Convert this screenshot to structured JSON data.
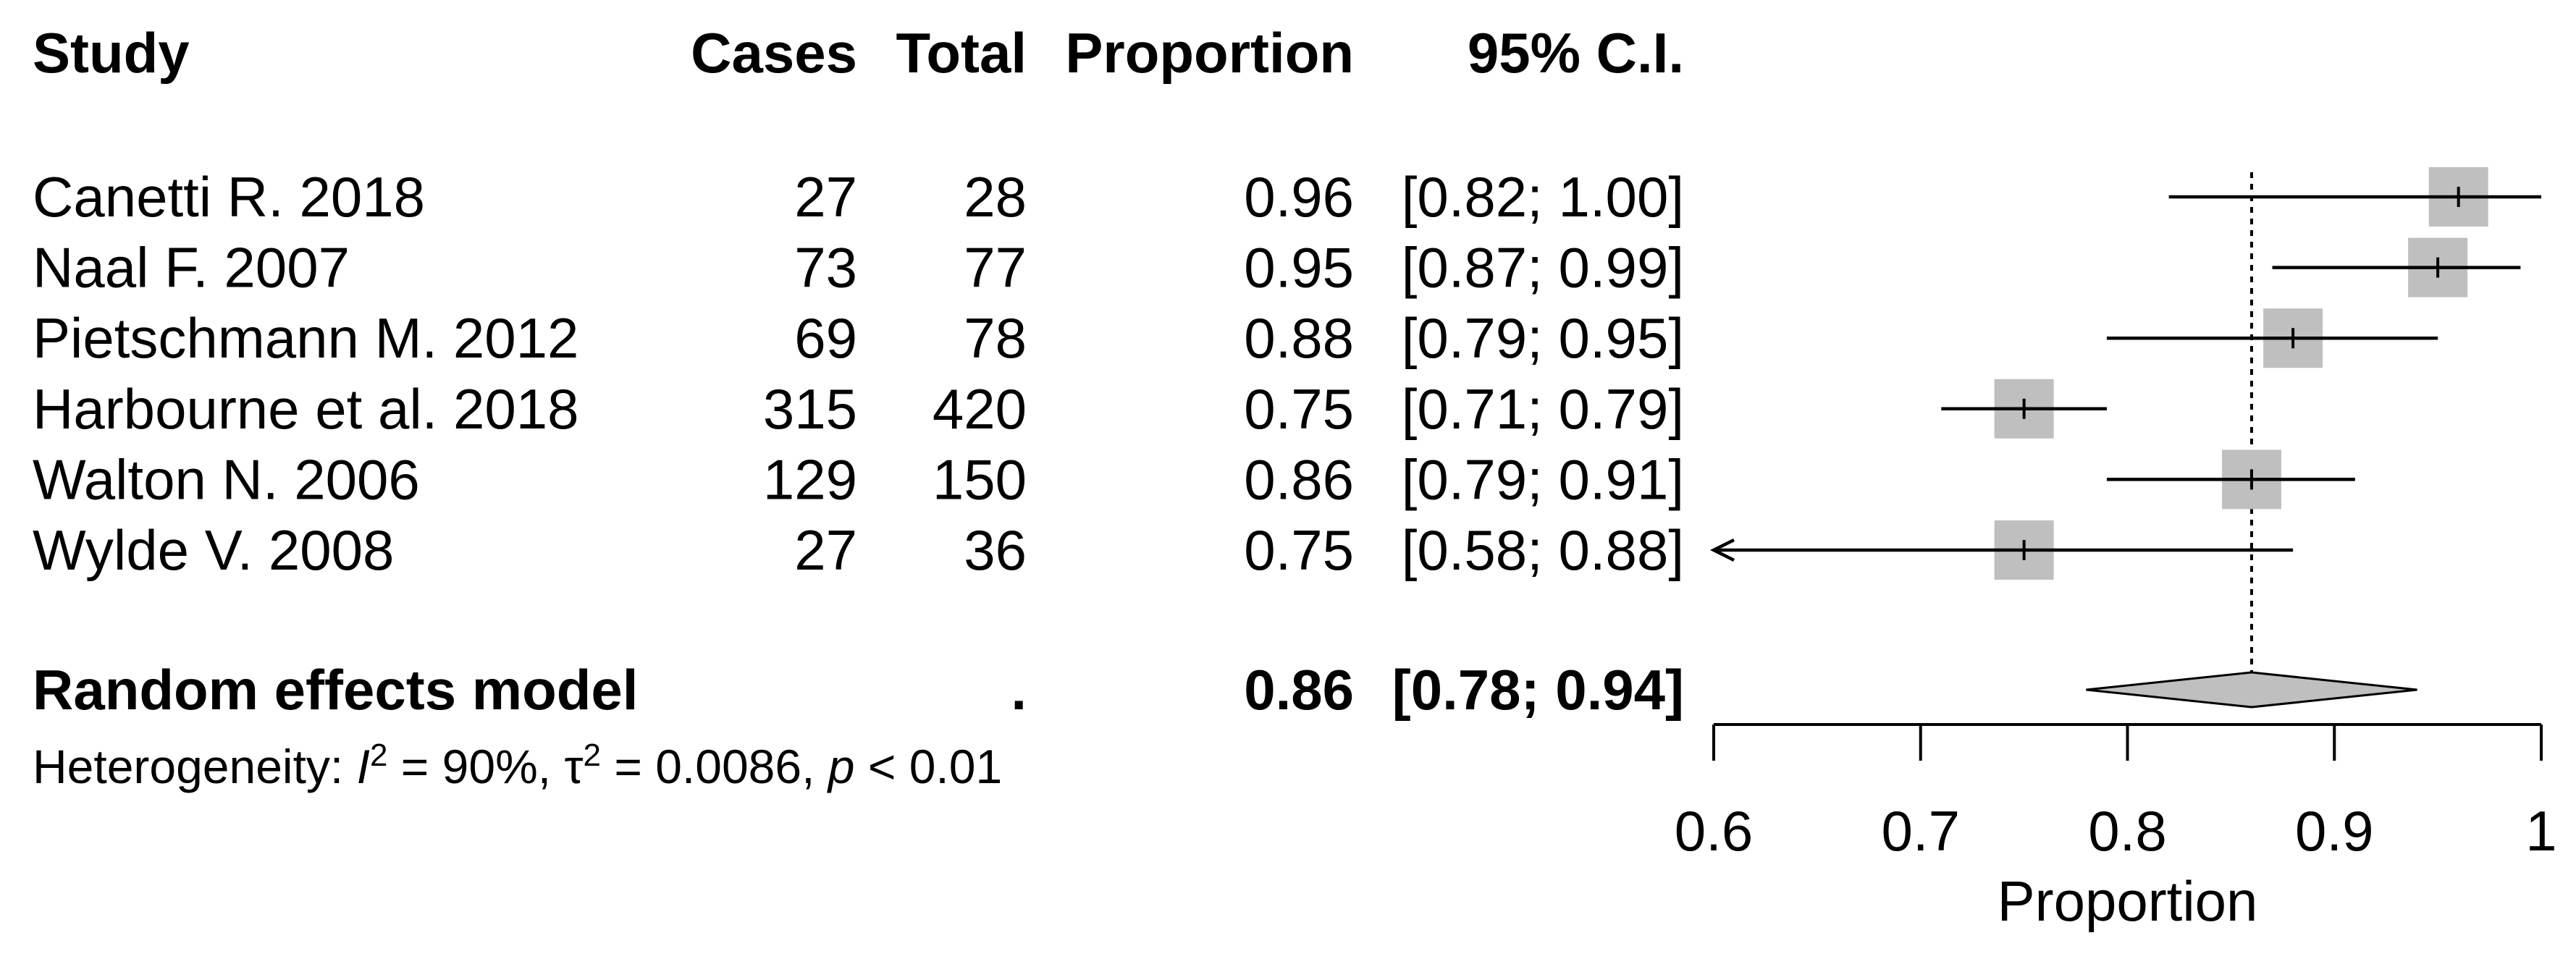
{
  "chart_data": {
    "type": "forest",
    "columns": [
      "Study",
      "Cases",
      "Total",
      "Proportion",
      "95% C.I."
    ],
    "studies": [
      {
        "name": "Canetti R. 2018",
        "cases": 27,
        "total": 28,
        "proportion": 0.96,
        "ci_lower": 0.82,
        "ci_upper": 1,
        "ci_label": "[0.82; 1.00]"
      },
      {
        "name": "Naal F. 2007",
        "cases": 73,
        "total": 77,
        "proportion": 0.95,
        "ci_lower": 0.87,
        "ci_upper": 0.99,
        "ci_label": "[0.87; 0.99]"
      },
      {
        "name": "Pietschmann M. 2012",
        "cases": 69,
        "total": 78,
        "proportion": 0.88,
        "ci_lower": 0.79,
        "ci_upper": 0.95,
        "ci_label": "[0.79; 0.95]"
      },
      {
        "name": "Harbourne et al. 2018",
        "cases": 315,
        "total": 420,
        "proportion": 0.75,
        "ci_lower": 0.71,
        "ci_upper": 0.79,
        "ci_label": "[0.71; 0.79]"
      },
      {
        "name": "Walton N. 2006",
        "cases": 129,
        "total": 150,
        "proportion": 0.86,
        "ci_lower": 0.79,
        "ci_upper": 0.91,
        "ci_label": "[0.79; 0.91]"
      },
      {
        "name": "Wylde V. 2008",
        "cases": 27,
        "total": 36,
        "proportion": 0.75,
        "ci_lower": 0.58,
        "ci_upper": 0.88,
        "ci_label": "[0.58; 0.88]"
      }
    ],
    "pooled": {
      "name": "Random effects model",
      "cases": ".",
      "proportion": 0.86,
      "ci_lower": 0.78,
      "ci_upper": 0.94,
      "ci_label": "[0.78; 0.94]"
    },
    "heterogeneity": [
      "Heterogeneity: ",
      "I",
      "2",
      " = 90%, ",
      "τ",
      "2",
      " = 0.0086, ",
      "p",
      " < 0.01"
    ],
    "xlabel": "Proportion",
    "xlim": [
      0.6,
      1
    ],
    "xticks": [
      0.6,
      0.7,
      0.8,
      0.9,
      1
    ],
    "box_color": "#bfbfbf",
    "diamond_color": "#bfbfbf"
  }
}
